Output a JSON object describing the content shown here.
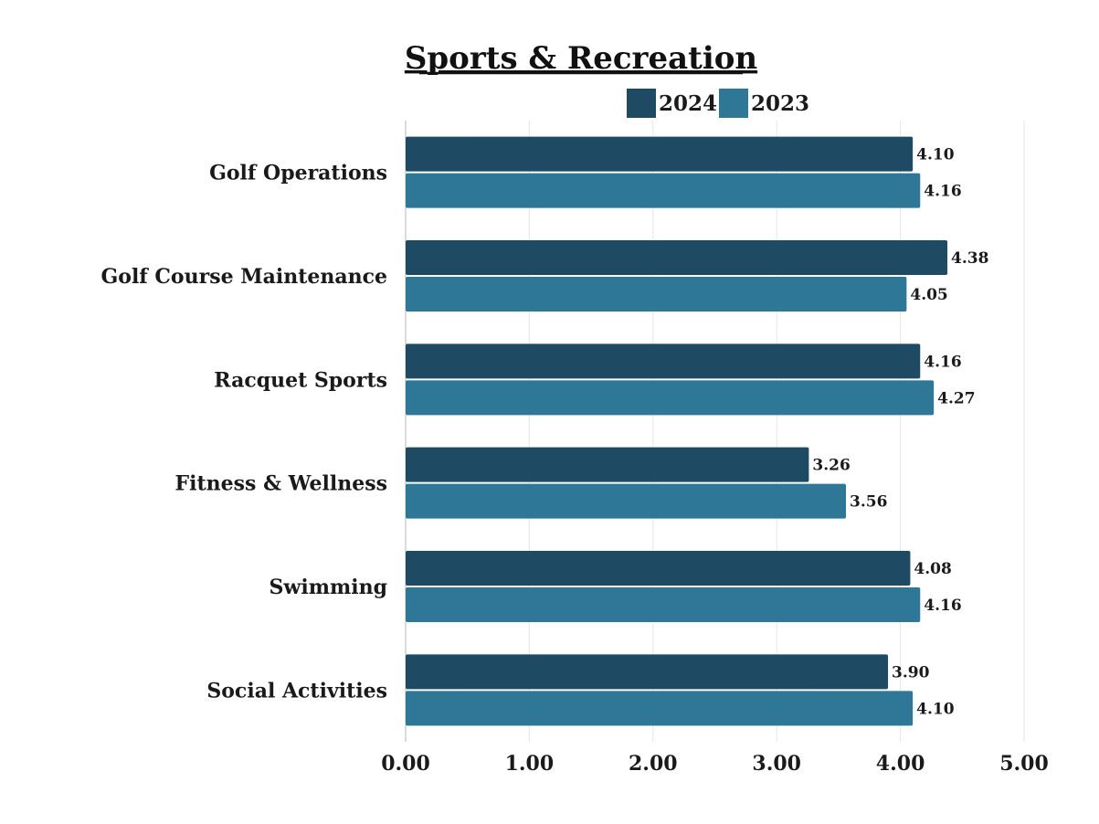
{
  "chart_data": {
    "type": "bar",
    "orientation": "horizontal",
    "title": "Sports & Recreation",
    "categories": [
      "Golf Operations",
      "Golf Course Maintenance",
      "Racquet Sports",
      "Fitness & Wellness",
      "Swimming",
      "Social Activities"
    ],
    "series": [
      {
        "name": "2024",
        "color": "#1f4a63",
        "values": [
          4.1,
          4.38,
          4.16,
          3.26,
          4.08,
          3.9
        ]
      },
      {
        "name": "2023",
        "color": "#2e7797",
        "values": [
          4.16,
          4.05,
          4.27,
          3.56,
          4.16,
          4.1
        ]
      }
    ],
    "value_labels": {
      "2024": [
        "4.10",
        "4.38",
        "4.16",
        "3.26",
        "4.08",
        "3.90"
      ],
      "2023": [
        "4.16",
        "4.05",
        "4.27",
        "3.56",
        "4.16",
        "4.10"
      ]
    },
    "xlim": [
      0,
      5
    ],
    "xticks": [
      0,
      1,
      2,
      3,
      4,
      5
    ],
    "xtick_labels": [
      "0.00",
      "1.00",
      "2.00",
      "3.00",
      "4.00",
      "5.00"
    ],
    "xlabel": "",
    "ylabel": "",
    "grid": true,
    "legend_position": "top-center"
  }
}
